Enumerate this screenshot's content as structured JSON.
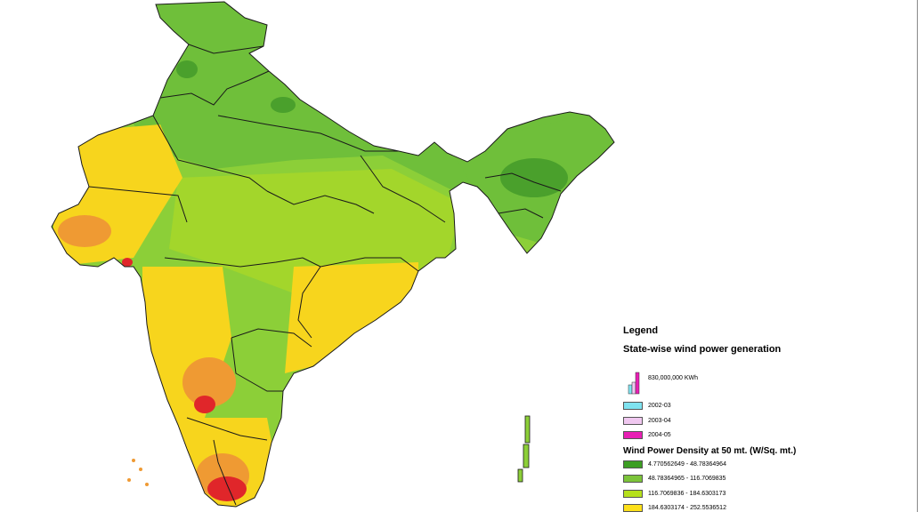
{
  "legend": {
    "title": "Legend",
    "generation_title": "State-wise wind power generation",
    "chart_value": "830,000,000 KWh",
    "years": [
      {
        "label": "2002-03",
        "color": "#7fe3f0"
      },
      {
        "label": "2003-04",
        "color": "#f0c8f0"
      },
      {
        "label": "2004-05",
        "color": "#e81fb4"
      }
    ],
    "density_title": "Wind Power Density at 50 mt. (W/Sq. mt.)",
    "density_classes": [
      {
        "label": "4.770562649 - 48.78364964",
        "color": "#3c9e23"
      },
      {
        "label": "48.78364965 - 116.7069835",
        "color": "#7cc43a"
      },
      {
        "label": "116.7069836 - 184.6303173",
        "color": "#b5e01c"
      },
      {
        "label": "184.6303174 - 252.5536512",
        "color": "#fde01a"
      }
    ]
  },
  "colors": {
    "map_base": "#8ccf38",
    "north_green": "#6fbf3a",
    "dark_green": "#4aa02c",
    "yellow": "#f7d51d",
    "orange": "#ef9a33",
    "red": "#e0262a",
    "border": "#1a1a1a"
  }
}
